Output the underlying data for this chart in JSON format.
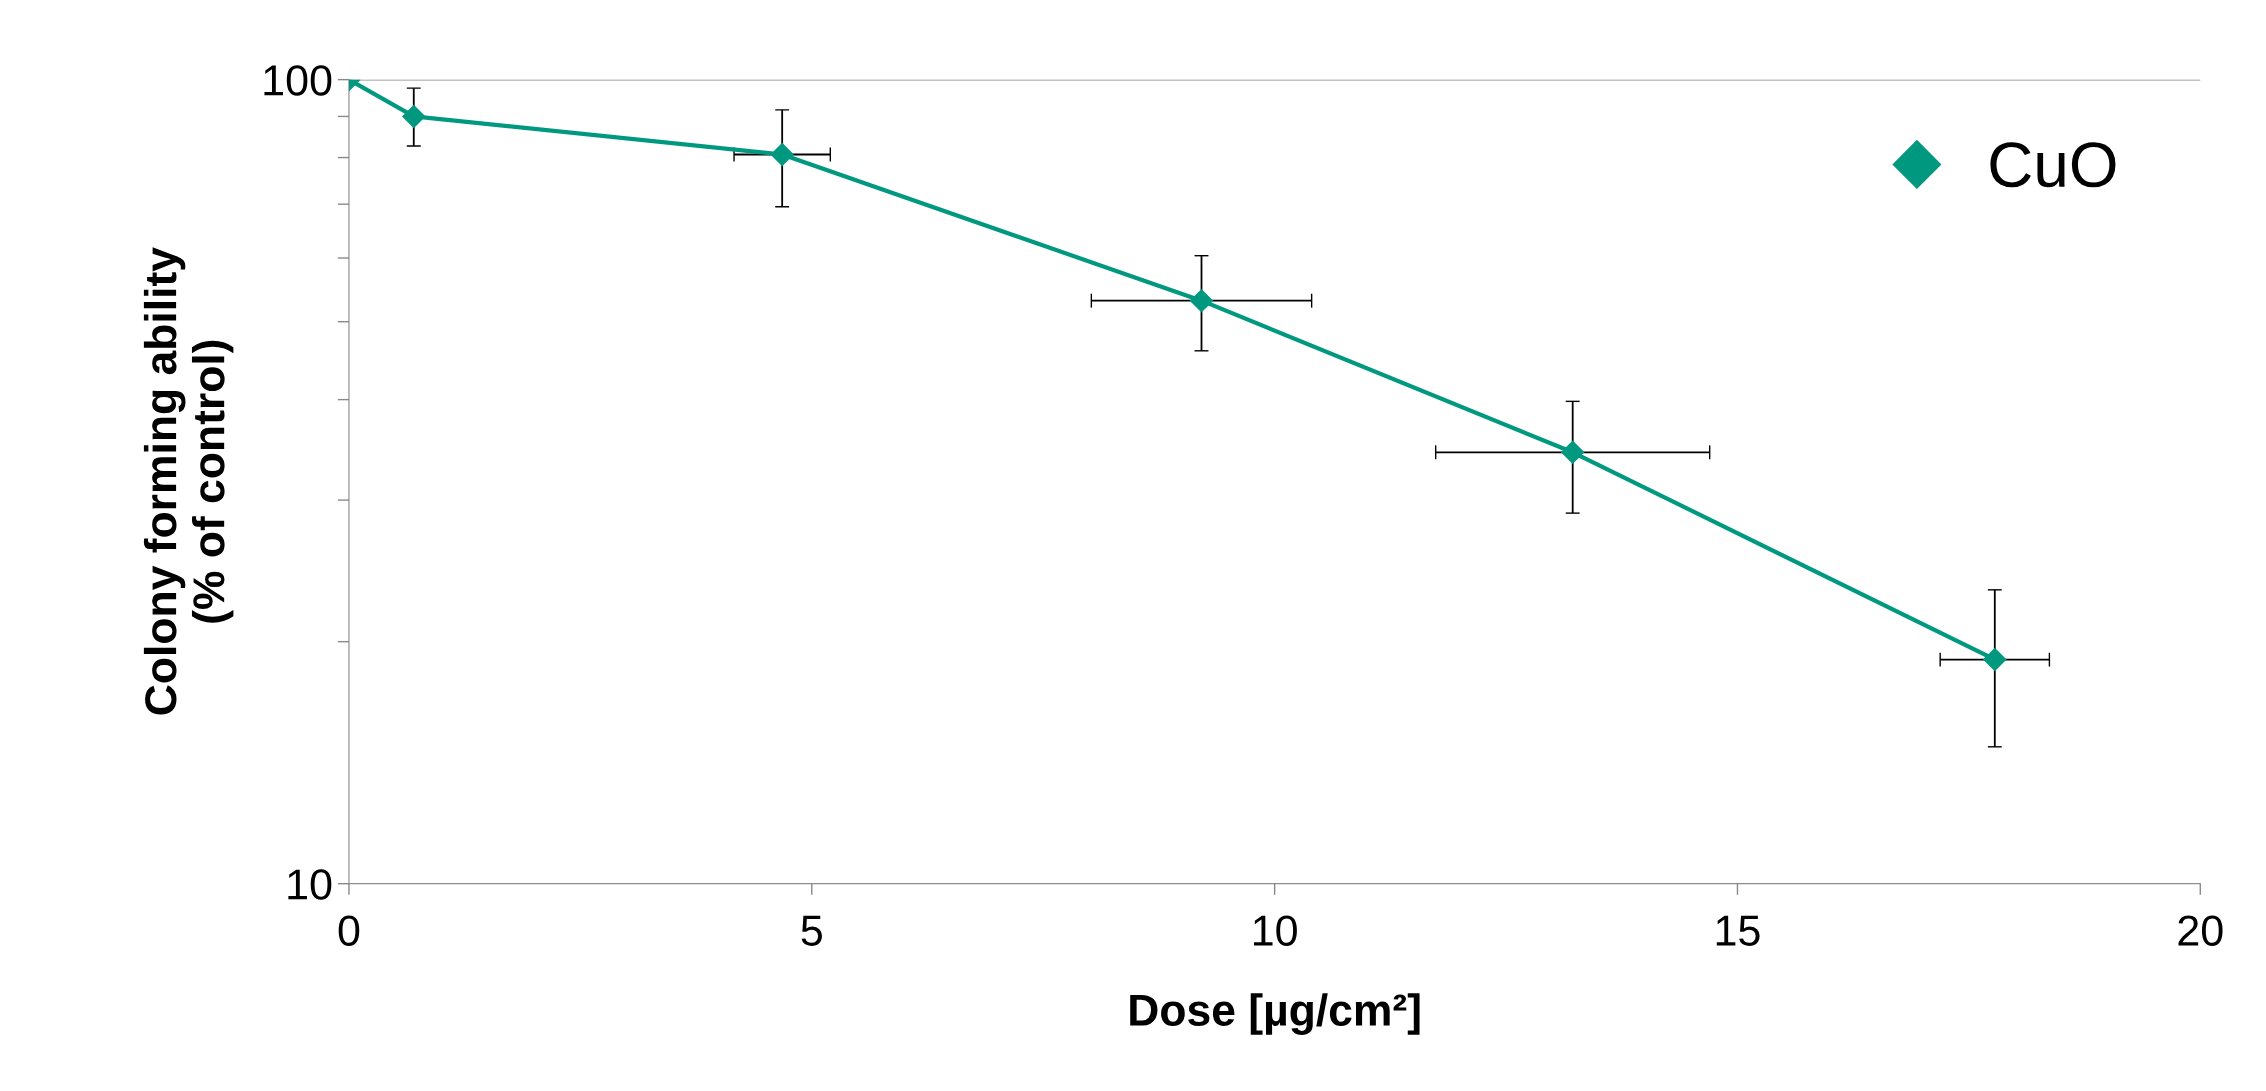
{
  "chart_data": {
    "type": "line",
    "xlabel": "Dose [µg/cm²]",
    "ylabel": "Colony forming ability\n(% of control)",
    "x": [
      0,
      0.7,
      4.68,
      9.21,
      13.22,
      17.78
    ],
    "series": [
      {
        "name": "CuO",
        "color": "#009980",
        "values": [
          100,
          90,
          80.7,
          53.1,
          34.4,
          19.0
        ],
        "errors": [
          null,
          [
            82.7,
            97.6
          ],
          [
            69.5,
            91.7
          ],
          [
            46.0,
            60.4
          ],
          [
            28.9,
            39.8
          ],
          [
            14.8,
            23.2
          ]
        ],
        "xerrors": [
          null,
          null,
          0.52,
          1.19,
          1.48,
          0.59
        ]
      }
    ],
    "log": "y",
    "xlim": [
      0,
      20
    ],
    "xticks": [
      0,
      5,
      10,
      15,
      20
    ],
    "ylim": [
      10,
      100
    ],
    "yticks": [
      10,
      {
        "value": 20,
        "label": null
      },
      {
        "value": 30,
        "label": null
      },
      {
        "value": 40,
        "label": null
      },
      {
        "value": 50,
        "label": null
      },
      {
        "value": 60,
        "label": null
      },
      {
        "value": 70,
        "label": null
      },
      {
        "value": 80,
        "label": null
      },
      {
        "value": 90,
        "label": null
      },
      100
    ],
    "grid": "y",
    "legend": "top right",
    "marker": "diamond",
    "line_style": "solid"
  }
}
